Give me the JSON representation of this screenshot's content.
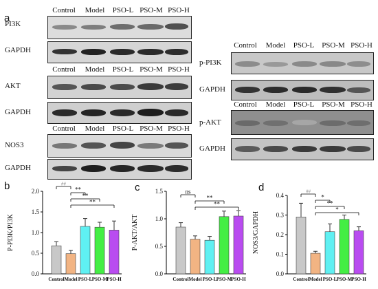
{
  "panel_labels": {
    "a": "a",
    "b": "b",
    "c": "c",
    "d": "d"
  },
  "lanes": [
    "Control",
    "Model",
    "PSO-L",
    "PSO-M",
    "PSO-H"
  ],
  "blots": {
    "pi3k": "PI3K",
    "gapdh": "GAPDH",
    "akt": "AKT",
    "nos3": "NOS3",
    "p_pi3k": "p-PI3K",
    "p_akt": "p-AKT"
  },
  "colors": {
    "Control": "#c8c8c8",
    "Model": "#f2b483",
    "PSO-L": "#5ff0f2",
    "PSO-M": "#44ee44",
    "PSO-H": "#b94cf0"
  },
  "chart_data": [
    {
      "type": "bar",
      "panel": "b",
      "categories": [
        "Control",
        "Model",
        "PSO-L",
        "PSO-M",
        "PSO-H"
      ],
      "values": [
        0.68,
        0.49,
        1.15,
        1.13,
        1.06
      ],
      "errors": [
        0.1,
        0.08,
        0.19,
        0.12,
        0.22
      ],
      "ylabel": "P-PI3K/PI3K",
      "ylim": [
        0,
        2.0
      ],
      "yticks": [
        "0.0",
        "0.5",
        "1.0",
        "1.5",
        "2.0"
      ],
      "significance": [
        {
          "from": "Control",
          "to": "Model",
          "label": "##"
        },
        {
          "from": "Model",
          "to": "PSO-L",
          "label": "**"
        },
        {
          "from": "Model",
          "to": "PSO-M",
          "label": "**"
        },
        {
          "from": "Model",
          "to": "PSO-H",
          "label": "**"
        }
      ]
    },
    {
      "type": "bar",
      "panel": "c",
      "categories": [
        "Control",
        "Model",
        "PSO-L",
        "PSO-M",
        "PSO-H"
      ],
      "values": [
        0.85,
        0.63,
        0.61,
        1.04,
        1.05
      ],
      "errors": [
        0.08,
        0.06,
        0.07,
        0.1,
        0.1
      ],
      "ylabel": "P-AKT/AKT",
      "ylim": [
        0,
        1.5
      ],
      "yticks": [
        "0.0",
        "0.5",
        "1.0",
        "1.5"
      ],
      "significance": [
        {
          "from": "Control",
          "to": "Model",
          "label": "ns"
        },
        {
          "from": "Model",
          "to": "PSO-M",
          "label": "**"
        },
        {
          "from": "Model",
          "to": "PSO-H",
          "label": "**"
        }
      ]
    },
    {
      "type": "bar",
      "panel": "d",
      "categories": [
        "Control",
        "Model",
        "PSO-L",
        "PSO-M",
        "PSO-H"
      ],
      "values": [
        0.29,
        0.105,
        0.215,
        0.278,
        0.22
      ],
      "errors": [
        0.07,
        0.01,
        0.04,
        0.022,
        0.02
      ],
      "ylabel": "NOS3/GAPDH",
      "ylim": [
        0,
        0.4
      ],
      "yticks": [
        "0.0",
        "0.1",
        "0.2",
        "0.3",
        "0.4"
      ],
      "significance": [
        {
          "from": "Control",
          "to": "Model",
          "label": "##"
        },
        {
          "from": "Model",
          "to": "PSO-L",
          "label": "*"
        },
        {
          "from": "Model",
          "to": "PSO-M",
          "label": "**"
        },
        {
          "from": "Model",
          "to": "PSO-H",
          "label": "*"
        }
      ]
    }
  ]
}
